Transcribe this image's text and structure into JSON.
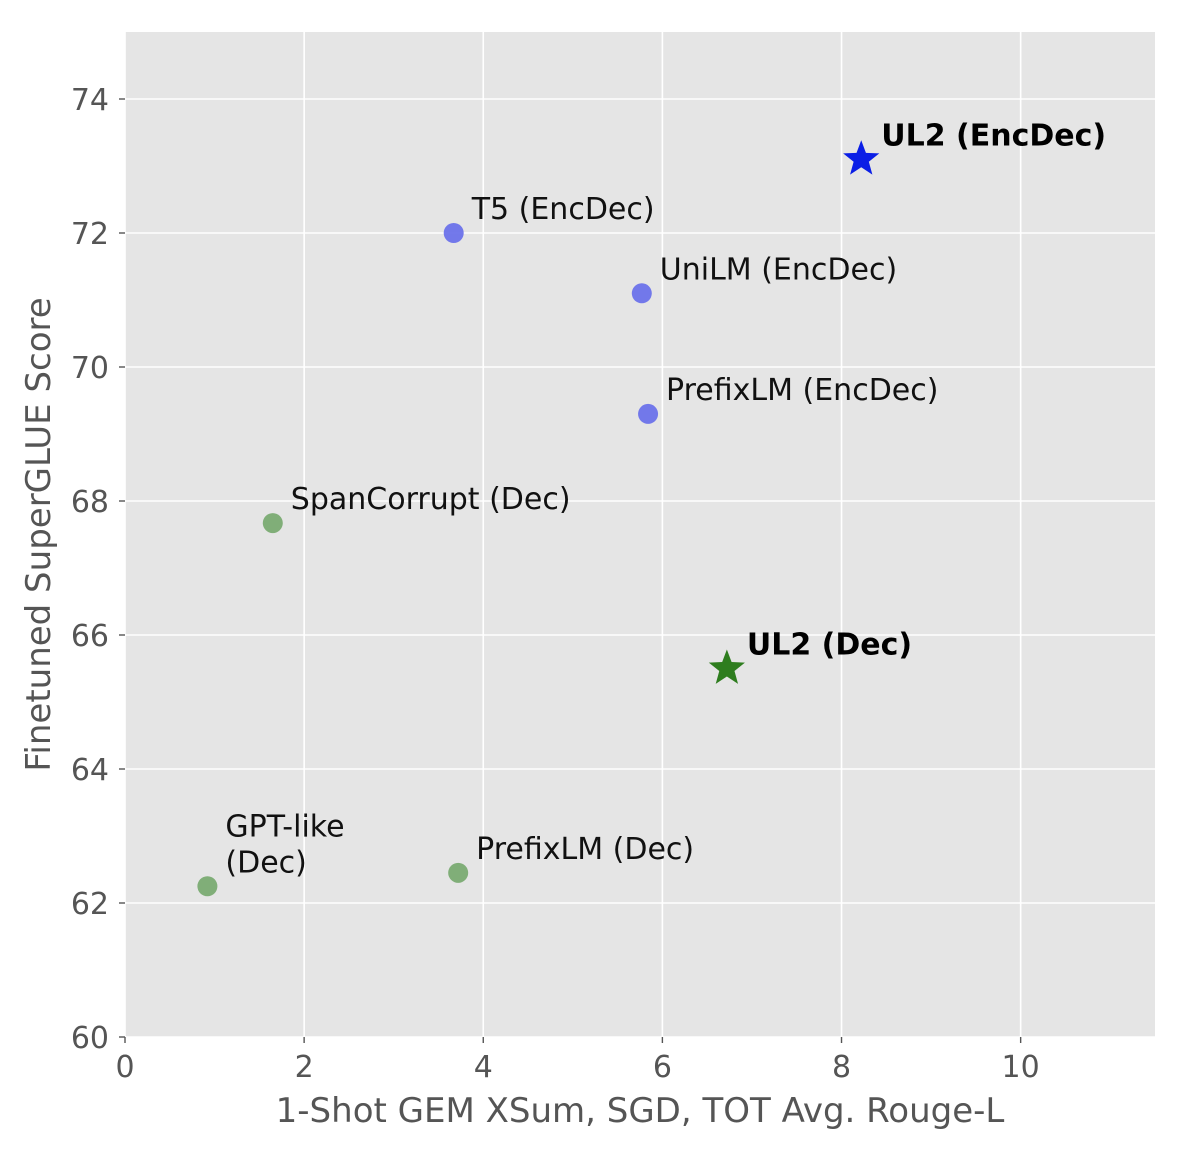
{
  "chart_data": {
    "type": "scatter",
    "title": "",
    "xlabel": "1-Shot GEM XSum, SGD, TOT Avg. Rouge-L",
    "ylabel": "Finetuned SuperGLUE Score",
    "xlim": [
      0,
      11.5
    ],
    "ylim": [
      60,
      75
    ],
    "xticks": [
      0,
      2,
      4,
      6,
      8,
      10
    ],
    "yticks": [
      60,
      62,
      64,
      66,
      68,
      70,
      72,
      74
    ],
    "grid": true,
    "background": "#e5e5e5",
    "points": [
      {
        "label": [
          "T5 (EncDec)"
        ],
        "x": 3.67,
        "y": 72.0,
        "marker": "circle",
        "color": "#6b72ea",
        "bold": false
      },
      {
        "label": [
          "UniLM (EncDec)"
        ],
        "x": 5.77,
        "y": 71.1,
        "marker": "circle",
        "color": "#6b72ea",
        "bold": false
      },
      {
        "label": [
          "PrefixLM (EncDec)"
        ],
        "x": 5.84,
        "y": 69.3,
        "marker": "circle",
        "color": "#6b72ea",
        "bold": false
      },
      {
        "label": [
          "UL2 (EncDec)"
        ],
        "x": 8.22,
        "y": 73.1,
        "marker": "star",
        "color": "#0a1ee6",
        "bold": true
      },
      {
        "label": [
          "SpanCorrupt (Dec)"
        ],
        "x": 1.65,
        "y": 67.67,
        "marker": "circle",
        "color": "#7aab72",
        "bold": false
      },
      {
        "label": [
          "UL2 (Dec)"
        ],
        "x": 6.72,
        "y": 65.5,
        "marker": "star",
        "color": "#2e7d1e",
        "bold": true
      },
      {
        "label": [
          "GPT-like",
          "(Dec)"
        ],
        "x": 0.92,
        "y": 62.25,
        "marker": "circle",
        "color": "#7aab72",
        "bold": false
      },
      {
        "label": [
          "PrefixLM (Dec)"
        ],
        "x": 3.72,
        "y": 62.45,
        "marker": "circle",
        "color": "#7aab72",
        "bold": false
      }
    ]
  }
}
